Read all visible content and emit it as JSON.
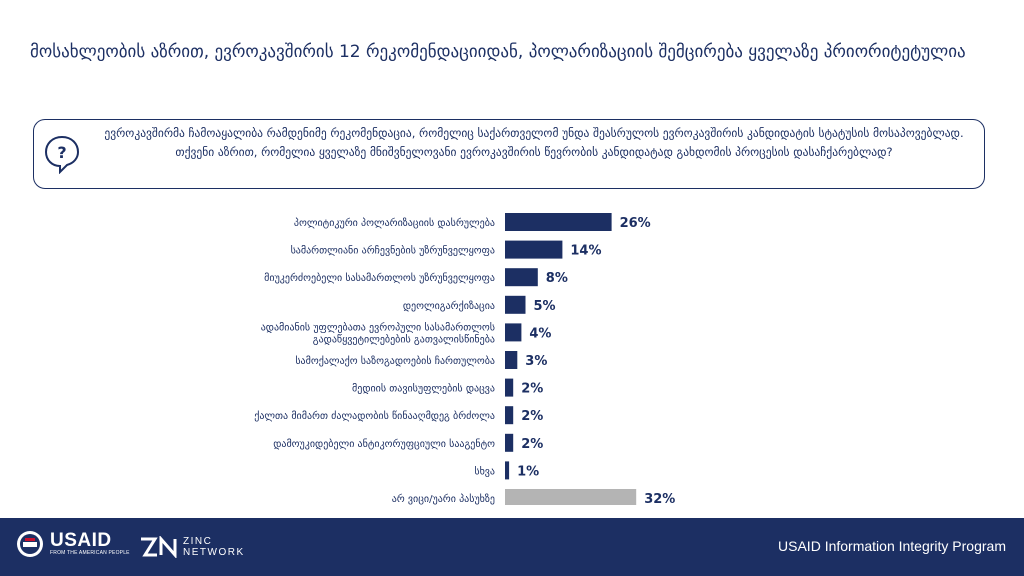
{
  "title": "მოსახლეობის აზრით, ევროკავშირის 12 რეკომენდაციიდან, პოლარიზაციის შემცირება ყველაზე პრიორიტეტულია",
  "question": {
    "icon": "question-mark-speech-icon",
    "text": "ევროკავშირმა ჩამოაყალიბა რამდენიმე რეკომენდაცია, რომელიც საქართველომ უნდა შეასრულოს ევროკავშირის კანდიდატის სტატუსის მოსაპოვებლად. თქვენი აზრით, რომელია ყველაზე მნიშვნელოვანი ევროკავშირის წევრობის კანდიდატად გახდომის პროცესის დასაჩქარებლად?"
  },
  "chart_data": {
    "type": "bar",
    "orientation": "horizontal",
    "categories": [
      "პოლიტიკური პოლარიზაციის დასრულება",
      "სამართლიანი არჩევნების უზრუნველყოფა",
      "მიუკერძოებელი სასამართლოს უზრუნველყოფა",
      "დეოლიგარქიზაცია",
      "ადამიანის უფლებათა ევროპული სასამართლოს გადაწყვეტილებების გათვალისწინება",
      "სამოქალაქო საზოგადოების ჩართულობა",
      "მედიის თავისუფლების დაცვა",
      "ქალთა მიმართ ძალადობის წინააღმდეგ ბრძოლა",
      "დამოუკიდებელი ანტიკორუფციული სააგენტო",
      "სხვა",
      "არ ვიცი/უარი პასუხზე"
    ],
    "values": [
      26,
      14,
      8,
      5,
      4,
      3,
      2,
      2,
      2,
      1,
      32
    ],
    "value_labels": [
      "26%",
      "14%",
      "8%",
      "5%",
      "4%",
      "3%",
      "2%",
      "2%",
      "2%",
      "1%",
      "32%"
    ],
    "unit": "%",
    "colors": {
      "main": "#1c2f63",
      "dont_know": "#b4b4b4"
    },
    "grid": false,
    "legend": "none"
  },
  "footer": {
    "usaid_name": "USAID",
    "usaid_tagline": "FROM THE AMERICAN PEOPLE",
    "zinc_line1": "ZINC",
    "zinc_line2": "NETWORK",
    "program": "USAID Information Integrity Program"
  },
  "colors": {
    "navy": "#1c2f63",
    "gray": "#b4b4b4",
    "white": "#ffffff"
  }
}
